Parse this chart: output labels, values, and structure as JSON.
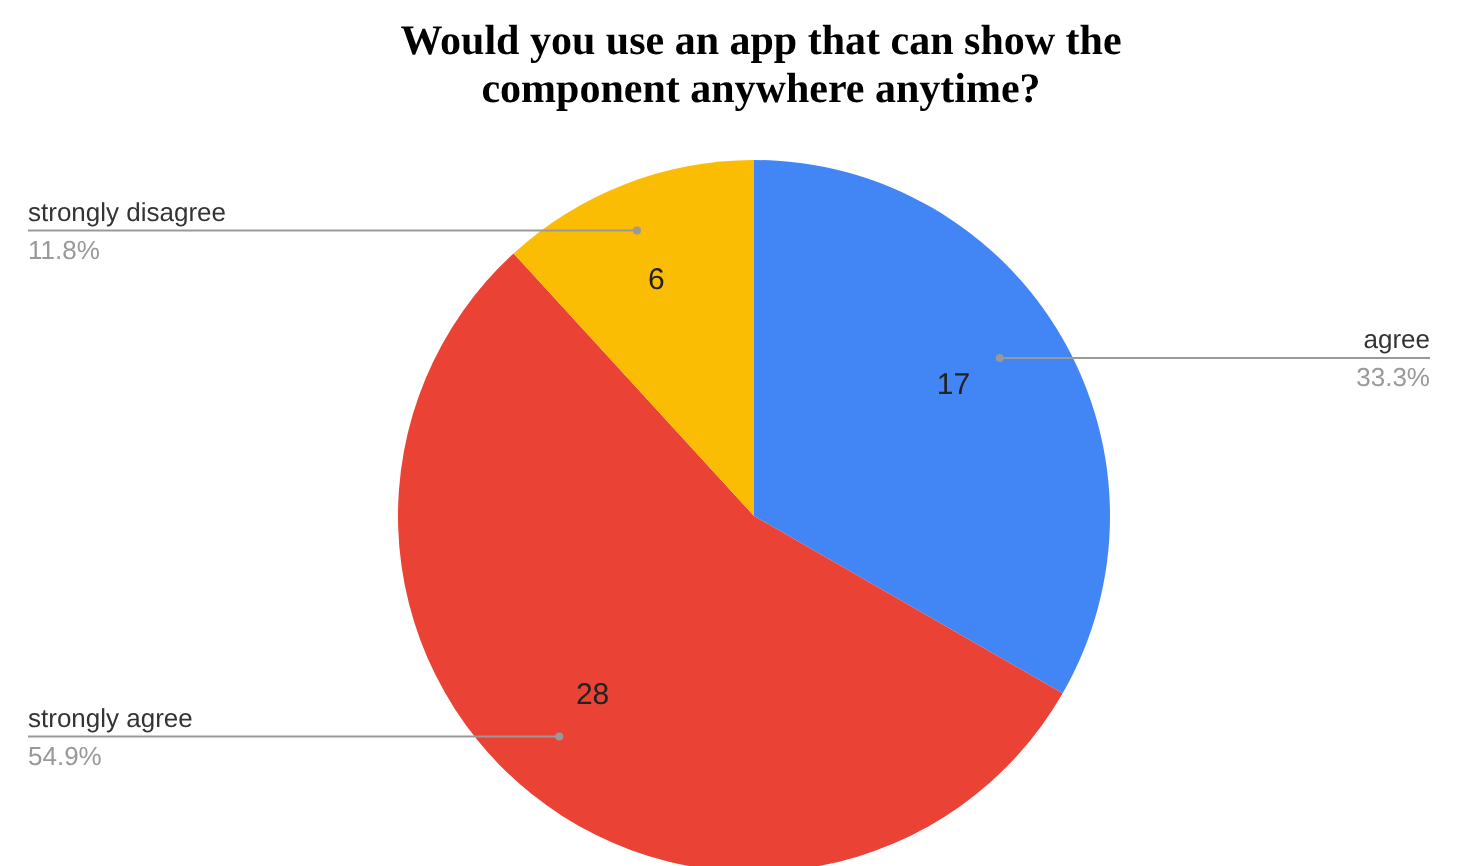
{
  "chart_data": {
    "type": "pie",
    "title": "Would you use an app that can show the component anywhere anytime?",
    "categories": [
      "agree",
      "strongly agree",
      "strongly disagree"
    ],
    "values": [
      33.3,
      54.9,
      11.8
    ],
    "colors": [
      "#4285f4",
      "#ea4335",
      "#fbbc04"
    ],
    "value_labels": [
      "33.3%",
      "54.9%",
      "11.8%"
    ],
    "annotations": [
      {
        "text": "17",
        "x": "agree"
      },
      {
        "text": "28",
        "x": "strongly agree"
      },
      {
        "text": "6",
        "x": "strongly disagree"
      }
    ]
  }
}
